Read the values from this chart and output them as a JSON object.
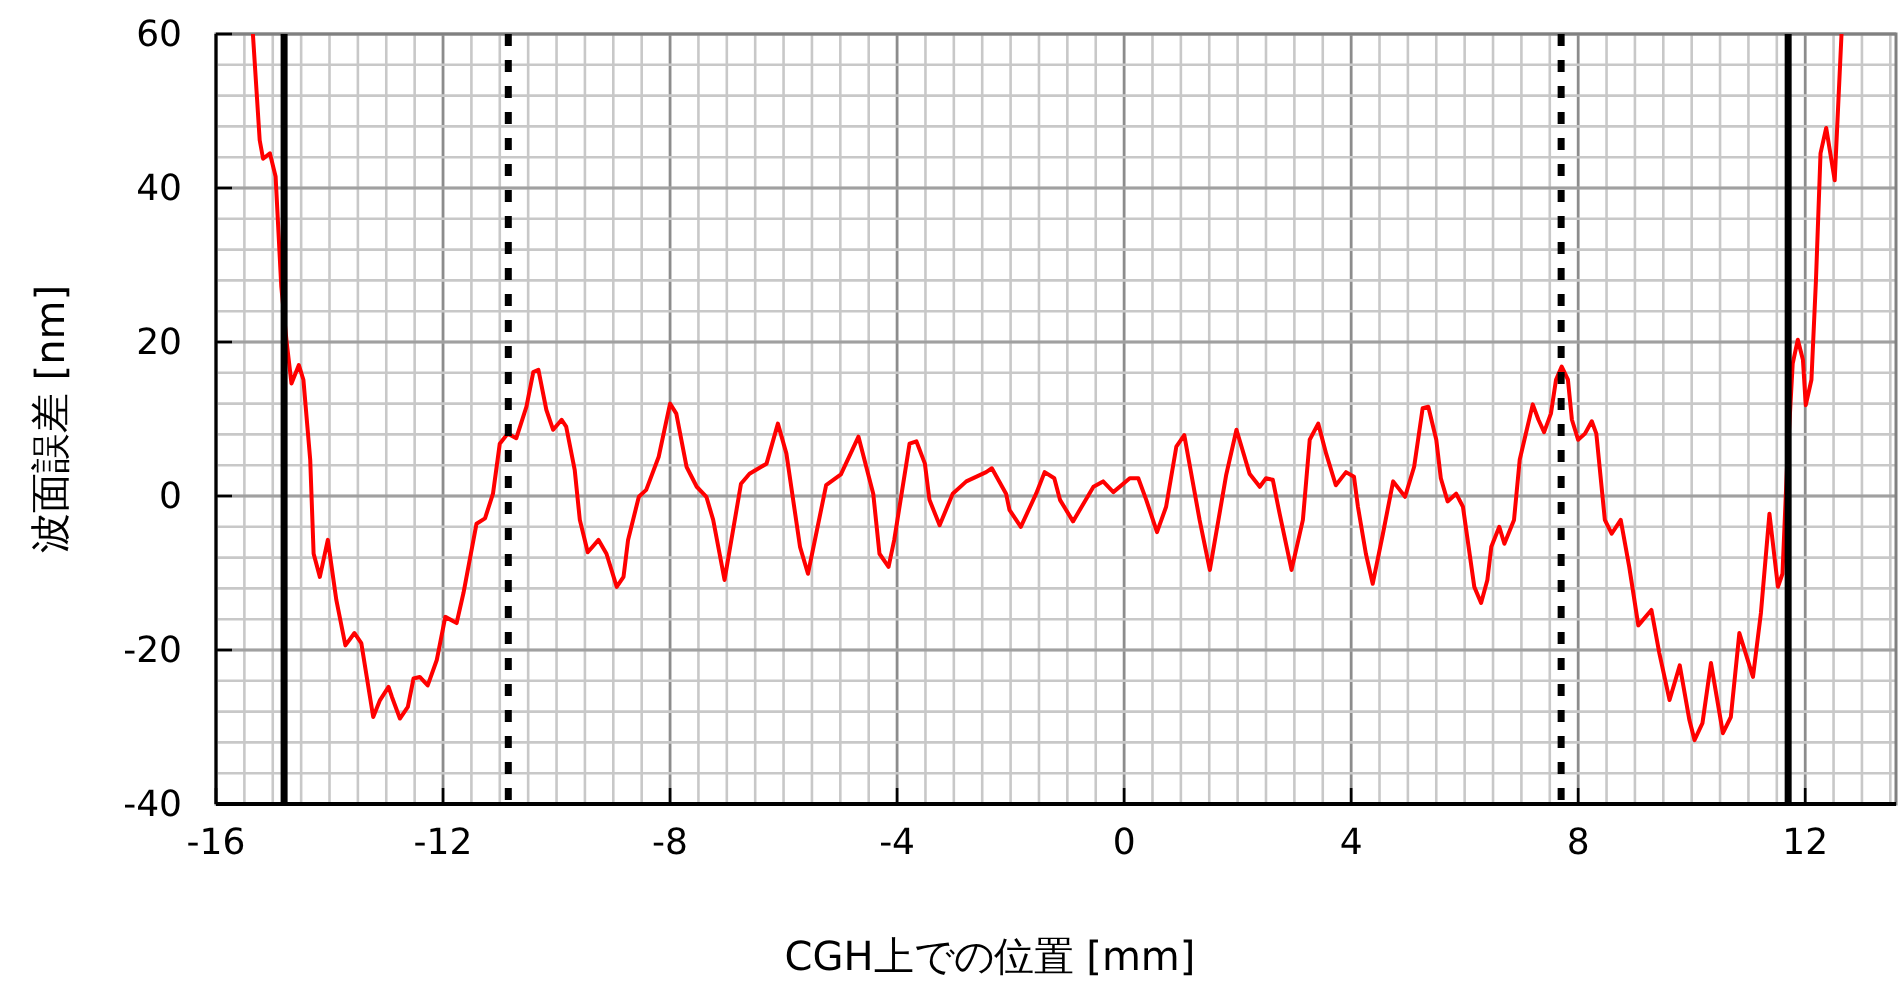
{
  "chart_data": {
    "type": "line",
    "xlabel": "CGH上での位置 [mm]",
    "ylabel": "波面誤差 [nm]",
    "xlim": [
      -16,
      13.6
    ],
    "ylim": [
      -40,
      60
    ],
    "xticks": [
      -16,
      -12,
      -8,
      -4,
      0,
      4,
      8,
      12
    ],
    "yticks": [
      -40,
      -20,
      0,
      20,
      40,
      60
    ],
    "grid": true,
    "series": [
      {
        "color": "#ff0000",
        "line_style": "solid",
        "x": [
          -15.35,
          -15.23,
          -15.17,
          -15.05,
          -14.95,
          -14.85,
          -14.76,
          -14.67,
          -14.54,
          -14.46,
          -14.34,
          -14.28,
          -14.17,
          -14.03,
          -13.88,
          -13.72,
          -13.56,
          -13.44,
          -13.23,
          -13.11,
          -12.96,
          -12.9,
          -12.76,
          -12.62,
          -12.52,
          -12.41,
          -12.27,
          -12.11,
          -11.96,
          -11.76,
          -11.64,
          -11.41,
          -11.26,
          -11.12,
          -11.0,
          -10.86,
          -10.71,
          -10.53,
          -10.41,
          -10.32,
          -10.18,
          -10.06,
          -9.91,
          -9.83,
          -9.68,
          -9.59,
          -9.45,
          -9.26,
          -9.12,
          -8.94,
          -8.82,
          -8.74,
          -8.55,
          -8.42,
          -8.2,
          -8.0,
          -7.89,
          -7.71,
          -7.53,
          -7.36,
          -7.24,
          -7.04,
          -6.75,
          -6.6,
          -6.3,
          -6.1,
          -5.95,
          -5.71,
          -5.57,
          -5.25,
          -4.99,
          -4.68,
          -4.42,
          -4.31,
          -4.15,
          -4.05,
          -3.78,
          -3.66,
          -3.51,
          -3.43,
          -3.25,
          -3.02,
          -2.78,
          -2.43,
          -2.33,
          -2.08,
          -2.02,
          -1.82,
          -1.55,
          -1.4,
          -1.23,
          -1.13,
          -0.9,
          -0.54,
          -0.37,
          -0.19,
          0.1,
          0.25,
          0.39,
          0.58,
          0.74,
          0.92,
          1.06,
          1.33,
          1.51,
          1.8,
          1.98,
          2.21,
          2.39,
          2.5,
          2.62,
          2.74,
          2.95,
          3.15,
          3.27,
          3.42,
          3.56,
          3.73,
          3.91,
          4.05,
          4.12,
          4.26,
          4.38,
          4.56,
          4.74,
          4.95,
          5.11,
          5.26,
          5.36,
          5.5,
          5.58,
          5.7,
          5.85,
          5.97,
          6.17,
          6.29,
          6.4,
          6.47,
          6.61,
          6.7,
          6.87,
          6.97,
          7.2,
          7.3,
          7.4,
          7.52,
          7.61,
          7.71,
          7.82,
          7.89,
          8.0,
          8.12,
          8.24,
          8.32,
          8.47,
          8.59,
          8.75,
          8.9,
          9.06,
          9.29,
          9.43,
          9.61,
          9.79,
          9.96,
          10.05,
          10.19,
          10.34,
          10.55,
          10.69,
          10.84,
          11.08,
          11.22,
          11.37,
          11.52,
          11.6,
          11.68,
          11.78,
          11.87,
          11.96,
          12.01,
          12.11,
          12.19,
          12.27,
          12.37,
          12.52,
          12.64
        ],
        "values": [
          60,
          46.2,
          43.8,
          44.5,
          41.5,
          27.2,
          20.3,
          14.6,
          17.0,
          15.1,
          4.7,
          -7.5,
          -10.5,
          -5.7,
          -13.5,
          -19.4,
          -17.8,
          -19.1,
          -28.7,
          -26.5,
          -24.8,
          -26.1,
          -28.9,
          -27.4,
          -23.7,
          -23.5,
          -24.6,
          -21.3,
          -15.7,
          -16.5,
          -12.6,
          -3.6,
          -2.9,
          0.3,
          6.8,
          8.1,
          7.5,
          11.6,
          16.1,
          16.4,
          11.2,
          8.6,
          9.9,
          9.0,
          3.4,
          -3.1,
          -7.3,
          -5.7,
          -7.5,
          -11.8,
          -10.5,
          -5.7,
          -0.1,
          0.8,
          5.1,
          12.0,
          10.7,
          3.8,
          1.2,
          -0.1,
          -3.1,
          -10.9,
          1.6,
          2.9,
          4.2,
          9.4,
          5.5,
          -6.6,
          -10.1,
          1.4,
          2.8,
          7.7,
          0.3,
          -7.5,
          -9.2,
          -5.7,
          6.8,
          7.1,
          4.2,
          -0.5,
          -3.8,
          0.3,
          1.9,
          3.1,
          3.6,
          0.3,
          -1.8,
          -4.0,
          0.3,
          3.1,
          2.3,
          -0.5,
          -3.3,
          1.2,
          1.9,
          0.5,
          2.3,
          2.3,
          -0.5,
          -4.7,
          -1.4,
          6.4,
          7.9,
          -3.1,
          -9.6,
          2.8,
          8.6,
          2.9,
          1.2,
          2.3,
          2.1,
          -2.3,
          -9.6,
          -3.1,
          7.3,
          9.4,
          5.5,
          1.4,
          3.1,
          2.5,
          -1.4,
          -7.5,
          -11.4,
          -4.9,
          1.9,
          -0.1,
          3.8,
          11.4,
          11.6,
          7.3,
          2.3,
          -0.7,
          0.3,
          -1.4,
          -11.8,
          -13.9,
          -10.9,
          -6.6,
          -4.0,
          -6.2,
          -3.1,
          4.7,
          11.9,
          9.9,
          8.3,
          10.7,
          15.1,
          16.8,
          15.1,
          9.9,
          7.3,
          8.1,
          9.7,
          8.1,
          -3.1,
          -4.9,
          -3.1,
          -9.2,
          -16.8,
          -14.8,
          -20.4,
          -26.5,
          -22.0,
          -29.1,
          -31.7,
          -29.5,
          -21.7,
          -30.8,
          -28.7,
          -17.8,
          -23.5,
          -15.2,
          -2.3,
          -11.8,
          -10.1,
          3.8,
          17.2,
          20.3,
          17.7,
          11.8,
          15.1,
          28.1,
          44.5,
          47.8,
          41.0,
          60
        ]
      }
    ],
    "ref_lines": [
      {
        "axis": "x",
        "value": -14.8,
        "color": "#000000",
        "line_style": "solid"
      },
      {
        "axis": "x",
        "value": -10.85,
        "color": "#000000",
        "line_style": "dotted"
      },
      {
        "axis": "x",
        "value": 7.7,
        "color": "#000000",
        "line_style": "dotted"
      },
      {
        "axis": "x",
        "value": 11.7,
        "color": "#000000",
        "line_style": "solid"
      }
    ]
  }
}
